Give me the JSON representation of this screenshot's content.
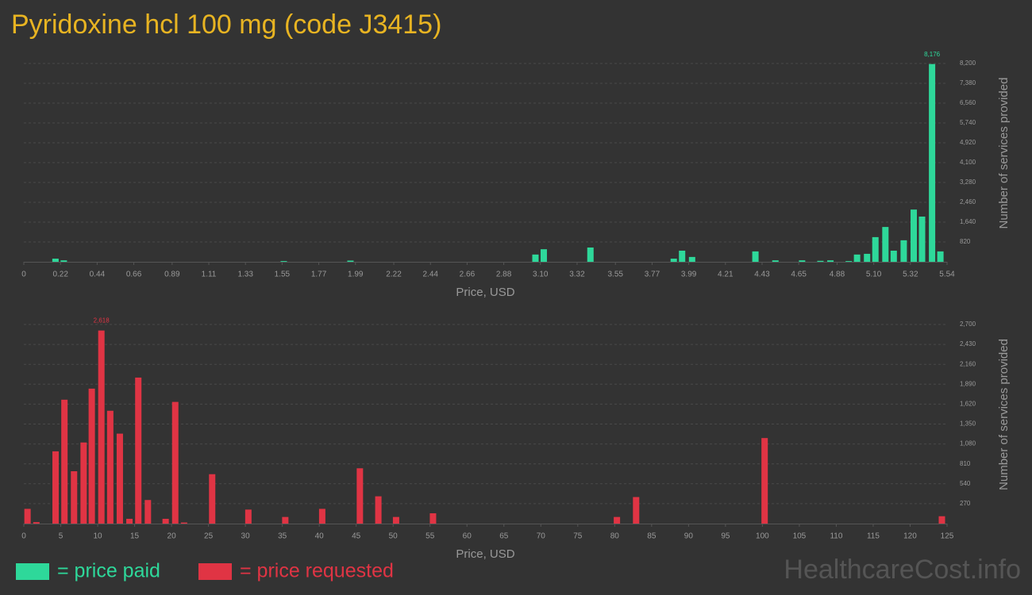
{
  "title": "Pyridoxine hcl 100 mg (code J3415)",
  "watermark": "HealthcareCost.info",
  "chart_data": [
    {
      "type": "bar",
      "xlabel": "Price, USD",
      "ylabel": "Number of services provided",
      "grid": true,
      "x": [
        0.19,
        0.24,
        1.56,
        1.96,
        3.07,
        3.12,
        3.4,
        3.9,
        3.95,
        4.01,
        4.39,
        4.51,
        4.67,
        4.78,
        4.84,
        4.95,
        5.0,
        5.06,
        5.11,
        5.17,
        5.22,
        5.28,
        5.34,
        5.39,
        5.45,
        5.5
      ],
      "series": [
        {
          "name": "= price paid",
          "color": "#2ed89a",
          "values": [
            130,
            60,
            30,
            50,
            300,
            520,
            590,
            130,
            460,
            200,
            430,
            60,
            60,
            40,
            60,
            30,
            300,
            330,
            1020,
            1440,
            460,
            890,
            2160,
            1870,
            8176,
            430
          ],
          "value_labels": [
            null,
            null,
            null,
            null,
            null,
            null,
            null,
            null,
            null,
            null,
            null,
            null,
            null,
            null,
            null,
            null,
            null,
            null,
            null,
            null,
            null,
            null,
            null,
            null,
            "8,176",
            null
          ]
        }
      ],
      "xlim": [
        0,
        5.54
      ],
      "xticks": [
        0,
        0.22,
        0.44,
        0.66,
        0.89,
        1.11,
        1.33,
        1.55,
        1.77,
        1.99,
        2.22,
        2.44,
        2.66,
        2.88,
        {
          "value": 3.1,
          "label": "3.10"
        },
        3.32,
        3.55,
        3.77,
        3.99,
        4.21,
        4.43,
        4.65,
        4.88,
        {
          "value": 5.1,
          "label": "5.10"
        },
        5.32,
        5.54
      ],
      "ylim": [
        0,
        8200
      ],
      "yticks": [
        820,
        {
          "value": 1640,
          "label": "1,640"
        },
        {
          "value": 2460,
          "label": "2,460"
        },
        {
          "value": 3280,
          "label": "3,280"
        },
        {
          "value": 4100,
          "label": "4,100"
        },
        {
          "value": 4920,
          "label": "4,920"
        },
        {
          "value": 5740,
          "label": "5,740"
        },
        {
          "value": 6560,
          "label": "6,560"
        },
        {
          "value": 7380,
          "label": "7,380"
        },
        {
          "value": 8200,
          "label": "8,200"
        }
      ]
    },
    {
      "type": "bar",
      "xlabel": "Price, USD",
      "ylabel": "Number of services provided",
      "grid": true,
      "x": [
        0.5,
        1.7,
        4.3,
        5.5,
        6.8,
        8.1,
        9.2,
        10.5,
        11.7,
        13.0,
        14.3,
        15.5,
        16.8,
        19.2,
        20.5,
        21.7,
        25.5,
        30.4,
        35.4,
        40.4,
        45.5,
        48.0,
        50.4,
        55.4,
        80.3,
        82.9,
        100.3,
        124.3
      ],
      "series": [
        {
          "name": "= price requested",
          "color": "#e03444",
          "values": [
            200,
            20,
            980,
            1680,
            710,
            1100,
            1830,
            2618,
            1530,
            1220,
            65,
            1980,
            320,
            65,
            1650,
            15,
            670,
            190,
            90,
            200,
            750,
            370,
            90,
            140,
            90,
            360,
            1160,
            100
          ],
          "value_labels": [
            null,
            null,
            null,
            null,
            null,
            null,
            null,
            "2,618",
            null,
            null,
            null,
            null,
            null,
            null,
            null,
            null,
            null,
            null,
            null,
            null,
            null,
            null,
            null,
            null,
            null,
            null,
            null,
            null
          ]
        }
      ],
      "xlim": [
        0,
        125
      ],
      "xticks": [
        0,
        5,
        10,
        15,
        20,
        25,
        30,
        35,
        40,
        45,
        50,
        55,
        60,
        65,
        70,
        75,
        80,
        85,
        90,
        95,
        100,
        105,
        110,
        115,
        120,
        125
      ],
      "ylim": [
        0,
        2700
      ],
      "yticks": [
        270,
        540,
        810,
        {
          "value": 1080,
          "label": "1,080"
        },
        {
          "value": 1350,
          "label": "1,350"
        },
        {
          "value": 1620,
          "label": "1,620"
        },
        {
          "value": 1890,
          "label": "1,890"
        },
        {
          "value": 2160,
          "label": "2,160"
        },
        {
          "value": 2430,
          "label": "2,430"
        },
        {
          "value": 2700,
          "label": "2,700"
        }
      ]
    }
  ]
}
